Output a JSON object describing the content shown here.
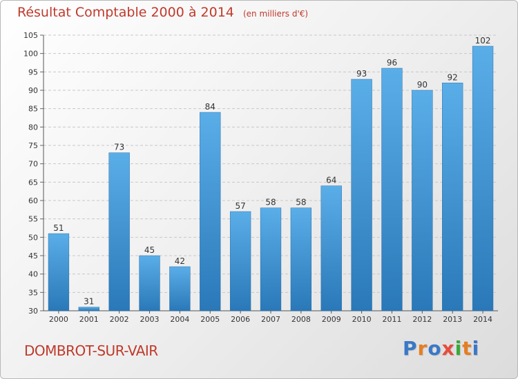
{
  "chart_data": {
    "type": "bar",
    "title": "Résultat Comptable 2000 à 2014",
    "unit_note": "(en milliers d'€)",
    "categories": [
      "2000",
      "2001",
      "2002",
      "2003",
      "2004",
      "2005",
      "2006",
      "2007",
      "2008",
      "2009",
      "2010",
      "2011",
      "2012",
      "2013",
      "2014"
    ],
    "values": [
      51,
      31,
      73,
      45,
      42,
      84,
      57,
      58,
      58,
      64,
      93,
      96,
      90,
      92,
      102
    ],
    "ylim": [
      30,
      105
    ],
    "yticks": [
      30,
      35,
      40,
      45,
      50,
      55,
      60,
      65,
      70,
      75,
      80,
      85,
      90,
      95,
      100,
      105
    ],
    "grid": "horizontal dashed",
    "bar_color": "#3a8fd4"
  },
  "footer": {
    "place": "DOMBROT-SUR-VAIR",
    "logo": "Proxiti",
    "logo_colors": [
      "#3a78c8",
      "#e67e22",
      "#3a78c8",
      "#e74c3c",
      "#3aa83a",
      "#e67e22",
      "#3a78c8"
    ]
  }
}
